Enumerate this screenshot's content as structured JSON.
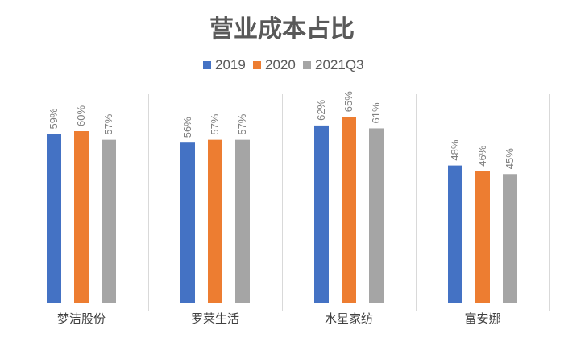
{
  "chart_data": {
    "type": "bar",
    "title": "营业成本占比",
    "xlabel": "",
    "ylabel": "",
    "categories": [
      "梦洁股份",
      "罗莱生活",
      "水星家纺",
      "富安娜"
    ],
    "series": [
      {
        "name": "2019",
        "color": "#4472c4",
        "values": [
          59,
          56,
          62,
          48
        ],
        "labels": [
          "59%",
          "56%",
          "62%",
          "48%"
        ]
      },
      {
        "name": "2020",
        "color": "#ed7d31",
        "values": [
          60,
          57,
          65,
          46
        ],
        "labels": [
          "60%",
          "57%",
          "65%",
          "46%"
        ]
      },
      {
        "name": "2021Q3",
        "color": "#a5a5a5",
        "values": [
          57,
          57,
          61,
          45
        ],
        "labels": [
          "57%",
          "57%",
          "61%",
          "45%"
        ]
      }
    ],
    "ylim": [
      0,
      100
    ],
    "grid": false,
    "legend_position": "top",
    "category_separators": true
  }
}
